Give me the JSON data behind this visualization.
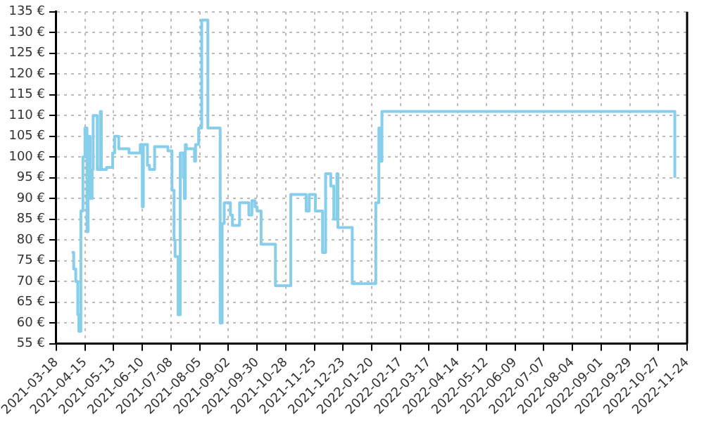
{
  "chart_data": {
    "type": "step",
    "color": "#87ceeb",
    "x": [
      "2021-04-02",
      "2021-04-04",
      "2021-04-06",
      "2021-04-08",
      "2021-04-09",
      "2021-04-11",
      "2021-04-13",
      "2021-04-15",
      "2021-04-17",
      "2021-04-18",
      "2021-04-20",
      "2021-04-22",
      "2021-04-23",
      "2021-04-27",
      "2021-04-30",
      "2021-05-01",
      "2021-05-06",
      "2021-05-12",
      "2021-05-14",
      "2021-05-18",
      "2021-05-28",
      "2021-06-08",
      "2021-06-10",
      "2021-06-11",
      "2021-06-15",
      "2021-06-17",
      "2021-06-22",
      "2021-07-05",
      "2021-07-09",
      "2021-07-11",
      "2021-07-12",
      "2021-07-15",
      "2021-07-17",
      "2021-07-20",
      "2021-07-21",
      "2021-07-22",
      "2021-07-23",
      "2021-07-31",
      "2021-08-01",
      "2021-08-04",
      "2021-08-07",
      "2021-08-13",
      "2021-08-25",
      "2021-08-27",
      "2021-08-29",
      "2021-09-04",
      "2021-09-06",
      "2021-09-13",
      "2021-09-22",
      "2021-09-25",
      "2021-09-28",
      "2021-09-30",
      "2021-10-04",
      "2021-10-18",
      "2021-11-02",
      "2021-11-17",
      "2021-11-20",
      "2021-11-26",
      "2021-12-03",
      "2021-12-06",
      "2021-12-11",
      "2021-12-14",
      "2021-12-17",
      "2021-12-18",
      "2022-01-01",
      "2022-01-24",
      "2022-01-27",
      "2022-01-28",
      "2022-01-30",
      "2022-11-12"
    ],
    "values": [
      77,
      73,
      70,
      62,
      58,
      87,
      100,
      107,
      82,
      105,
      90,
      97,
      110,
      97,
      111,
      97,
      97.5,
      101,
      105,
      102,
      101,
      103,
      88,
      103,
      98,
      97,
      102.5,
      101.5,
      92,
      80,
      76,
      62,
      101,
      95,
      90,
      103,
      102,
      99,
      103,
      107,
      133,
      107,
      60,
      84,
      89,
      86,
      83.5,
      89,
      86,
      89.5,
      88,
      87,
      79,
      69,
      91,
      87,
      91,
      87,
      77,
      96,
      93,
      85,
      96,
      83,
      69.5,
      89,
      107,
      99,
      111,
      95
    ],
    "xlim": [
      "2021-03-18",
      "2022-11-24"
    ],
    "xticks": [
      "2021-03-18",
      "2021-04-15",
      "2021-05-13",
      "2021-06-10",
      "2021-07-08",
      "2021-08-05",
      "2021-09-02",
      "2021-09-30",
      "2021-10-28",
      "2021-11-25",
      "2021-12-23",
      "2022-01-20",
      "2022-02-17",
      "2022-03-17",
      "2022-04-14",
      "2022-05-12",
      "2022-06-09",
      "2022-07-07",
      "2022-08-04",
      "2022-09-01",
      "2022-09-29",
      "2022-10-27",
      "2022-11-24"
    ],
    "ylim": [
      55,
      135
    ],
    "yticks": [
      {
        "value": 55,
        "label": "55 €"
      },
      {
        "value": 60,
        "label": "60 €"
      },
      {
        "value": 65,
        "label": "65 €"
      },
      {
        "value": 70,
        "label": "70 €"
      },
      {
        "value": 75,
        "label": "75 €"
      },
      {
        "value": 80,
        "label": "80 €"
      },
      {
        "value": 85,
        "label": "85 €"
      },
      {
        "value": 90,
        "label": "90 €"
      },
      {
        "value": 95,
        "label": "95 €"
      },
      {
        "value": 100,
        "label": "100 €"
      },
      {
        "value": 105,
        "label": "105 €"
      },
      {
        "value": 110,
        "label": "110 €"
      },
      {
        "value": 115,
        "label": "115 €"
      },
      {
        "value": 120,
        "label": "120 €"
      },
      {
        "value": 125,
        "label": "125 €"
      },
      {
        "value": 130,
        "label": "130 €"
      },
      {
        "value": 135,
        "label": "135 €"
      }
    ],
    "grid": true,
    "line_style": "solid",
    "marker": "none",
    "legend": false
  }
}
